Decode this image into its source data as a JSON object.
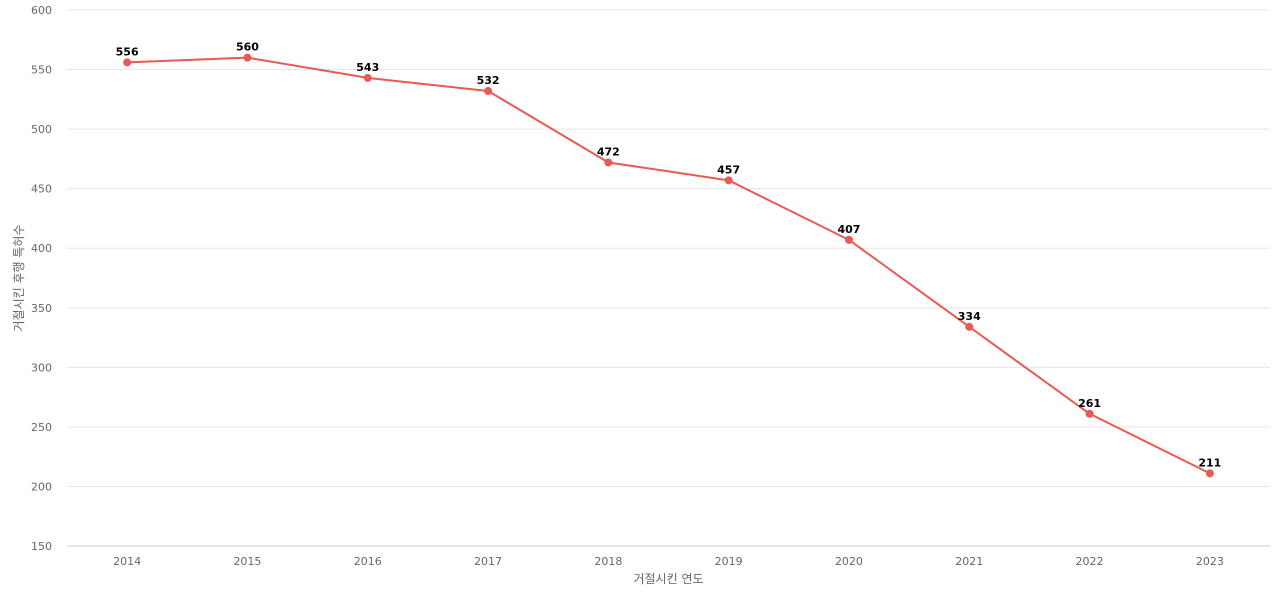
{
  "chart_data": {
    "type": "line",
    "title": "",
    "xlabel": "거절시킨 연도",
    "ylabel": "거절시킨 후행 특허수",
    "categories": [
      "2014",
      "2015",
      "2016",
      "2017",
      "2018",
      "2019",
      "2020",
      "2021",
      "2022",
      "2023"
    ],
    "series": [
      {
        "values": [
          556,
          560,
          543,
          532,
          472,
          457,
          407,
          334,
          261,
          211
        ],
        "color": "#e85a55"
      }
    ],
    "ylim": [
      150,
      600
    ],
    "yticks": [
      150,
      200,
      250,
      300,
      350,
      400,
      450,
      500,
      550,
      600
    ],
    "grid": true,
    "data_labels": true
  }
}
